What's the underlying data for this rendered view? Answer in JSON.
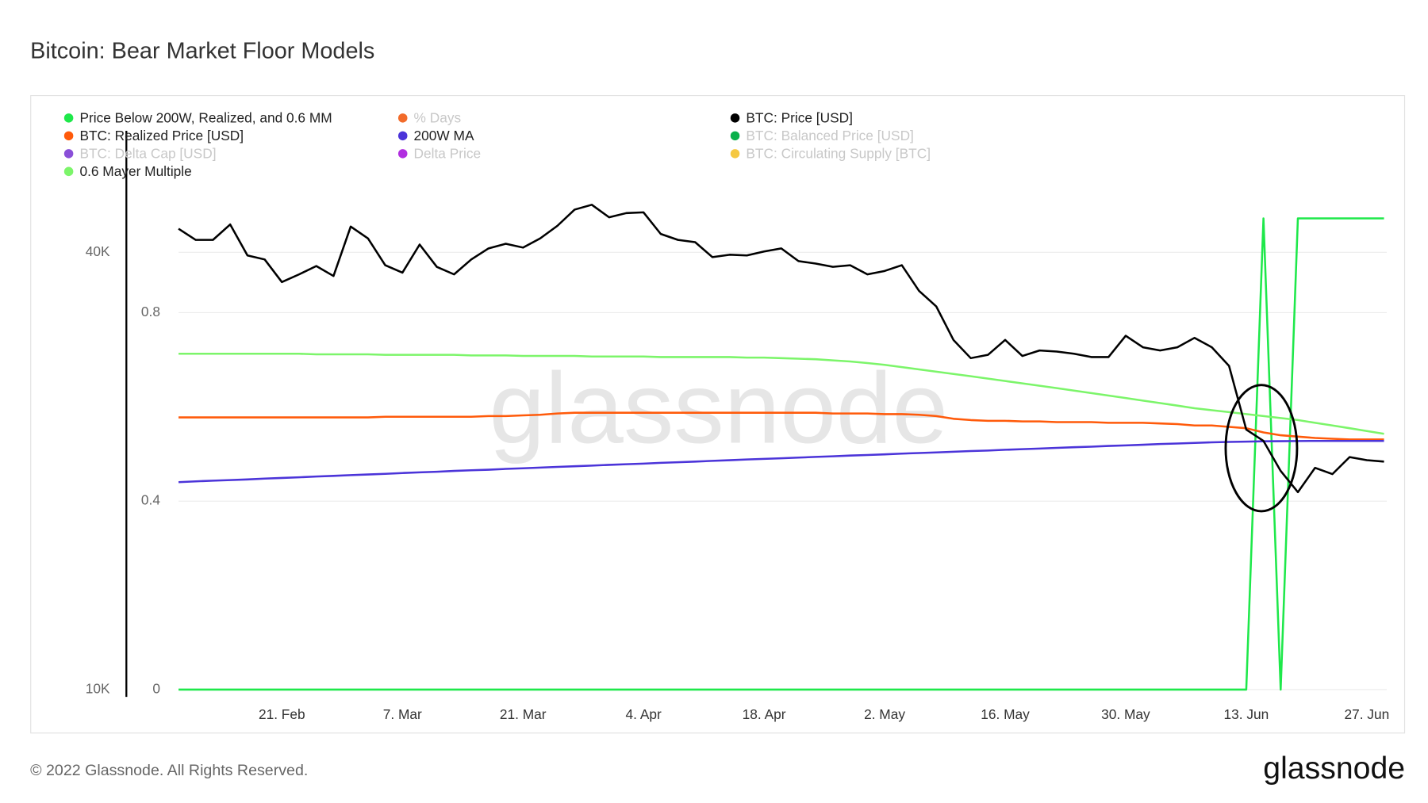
{
  "chart_data": {
    "type": "line",
    "title": "Bitcoin: Bear Market Floor Models",
    "watermark": "glassnode",
    "footer": "© 2022 Glassnode. All Rights Reserved.",
    "logo": "glassnode",
    "categories": [
      null,
      null,
      null,
      null,
      null,
      null,
      "21. Feb",
      null,
      null,
      null,
      null,
      null,
      null,
      "7. Mar",
      null,
      null,
      null,
      null,
      null,
      null,
      "21. Mar",
      null,
      null,
      null,
      null,
      null,
      null,
      "4. Apr",
      null,
      null,
      null,
      null,
      null,
      null,
      "18. Apr",
      null,
      null,
      null,
      null,
      null,
      null,
      "2. May",
      null,
      null,
      null,
      null,
      null,
      null,
      "16. May",
      null,
      null,
      null,
      null,
      null,
      null,
      "30. May",
      null,
      null,
      null,
      null,
      null,
      null,
      "13. Jun",
      null,
      null,
      null,
      null,
      null,
      null,
      "27. Jun",
      null
    ],
    "ylim": [
      10000,
      58800
    ],
    "log_scale": true,
    "yticks": [
      {
        "value": 10000,
        "label": "10K"
      },
      {
        "value": 40000,
        "label": "40K"
      }
    ],
    "y2lim": [
      0,
      1.186
    ],
    "y2ticks": [
      0,
      0.4,
      0.8
    ],
    "grid": true,
    "series": [
      {
        "name": "Price Below 200W, Realized, and 0.6 MM",
        "color": "#1ee84a",
        "axis": "y2",
        "visible": true,
        "values": [
          0,
          0,
          0,
          0,
          0,
          0,
          0,
          0,
          0,
          0,
          0,
          0,
          0,
          0,
          0,
          0,
          0,
          0,
          0,
          0,
          0,
          0,
          0,
          0,
          0,
          0,
          0,
          0,
          0,
          0,
          0,
          0,
          0,
          0,
          0,
          0,
          0,
          0,
          0,
          0,
          0,
          0,
          0,
          0,
          0,
          0,
          0,
          0,
          0,
          0,
          0,
          0,
          0,
          0,
          0,
          0,
          0,
          0,
          0,
          0,
          0,
          0,
          0,
          1,
          0,
          1,
          1,
          1,
          1,
          1,
          1
        ]
      },
      {
        "name": "% Days",
        "color": "#f26b2a",
        "visible": false
      },
      {
        "name": "BTC: Price [USD]",
        "color": "#000000",
        "visible": true,
        "values": [
          43100,
          41600,
          41600,
          43700,
          39600,
          39100,
          36400,
          37300,
          38300,
          37100,
          43400,
          41800,
          38400,
          37500,
          41000,
          38200,
          37300,
          39100,
          40500,
          41100,
          40600,
          41800,
          43500,
          45800,
          46500,
          44700,
          45300,
          45400,
          42400,
          41600,
          41300,
          39400,
          39700,
          39600,
          40100,
          40500,
          38900,
          38600,
          38200,
          38400,
          37300,
          37700,
          38400,
          35400,
          33700,
          30300,
          28600,
          28900,
          30300,
          28800,
          29300,
          29200,
          29000,
          28700,
          28700,
          30700,
          29600,
          29300,
          29600,
          30500,
          29600,
          27900,
          22800,
          22000,
          20000,
          18700,
          20200,
          19800,
          20900,
          20700,
          20600
        ]
      },
      {
        "name": "BTC: Realized Price [USD]",
        "color": "#ff5a0a",
        "visible": true,
        "values": [
          23700,
          23700,
          23700,
          23700,
          23700,
          23700,
          23700,
          23700,
          23700,
          23700,
          23700,
          23700,
          23750,
          23750,
          23750,
          23750,
          23750,
          23750,
          23800,
          23800,
          23850,
          23900,
          24000,
          24050,
          24050,
          24050,
          24050,
          24050,
          24050,
          24050,
          24050,
          24050,
          24050,
          24050,
          24050,
          24050,
          24050,
          24050,
          24000,
          24000,
          24000,
          23950,
          23950,
          23900,
          23800,
          23600,
          23500,
          23450,
          23450,
          23400,
          23400,
          23350,
          23350,
          23350,
          23300,
          23300,
          23300,
          23250,
          23200,
          23100,
          23100,
          23000,
          22900,
          22600,
          22400,
          22300,
          22200,
          22150,
          22100,
          22100,
          22100
        ]
      },
      {
        "name": "200W MA",
        "color": "#4b34d9",
        "visible": true,
        "values": [
          19300,
          19350,
          19390,
          19430,
          19470,
          19520,
          19560,
          19600,
          19650,
          19690,
          19740,
          19780,
          19820,
          19870,
          19910,
          19950,
          20000,
          20040,
          20080,
          20130,
          20170,
          20210,
          20260,
          20300,
          20340,
          20390,
          20430,
          20470,
          20520,
          20560,
          20600,
          20650,
          20690,
          20740,
          20780,
          20820,
          20870,
          20910,
          20950,
          21000,
          21040,
          21080,
          21130,
          21170,
          21210,
          21260,
          21300,
          21340,
          21390,
          21430,
          21470,
          21520,
          21560,
          21600,
          21650,
          21690,
          21730,
          21780,
          21820,
          21860,
          21900,
          21930,
          21950,
          21970,
          21980,
          21990,
          22000,
          22000,
          22000,
          22000,
          22000
        ]
      },
      {
        "name": "BTC: Balanced Price [USD]",
        "color": "#0ab04a",
        "visible": false
      },
      {
        "name": "BTC: Delta Cap [USD]",
        "color": "#8a4fd8",
        "visible": false
      },
      {
        "name": "Delta Price",
        "color": "#b12ee0",
        "visible": false
      },
      {
        "name": "BTC: Circulating Supply [BTC]",
        "color": "#f5c842",
        "visible": false
      },
      {
        "name": "0.6 Mayer Multiple",
        "color": "#7cf56a",
        "visible": true,
        "values": [
          29000,
          29000,
          29000,
          29000,
          29000,
          29000,
          29000,
          29000,
          28950,
          28950,
          28950,
          28950,
          28900,
          28900,
          28900,
          28900,
          28900,
          28850,
          28850,
          28850,
          28800,
          28800,
          28800,
          28800,
          28750,
          28750,
          28750,
          28750,
          28700,
          28700,
          28700,
          28700,
          28700,
          28650,
          28650,
          28600,
          28550,
          28500,
          28400,
          28300,
          28150,
          28000,
          27800,
          27600,
          27400,
          27200,
          27000,
          26800,
          26600,
          26400,
          26200,
          26000,
          25800,
          25600,
          25400,
          25200,
          25000,
          24800,
          24600,
          24400,
          24250,
          24100,
          23950,
          23800,
          23650,
          23500,
          23300,
          23100,
          22900,
          22700,
          22500
        ]
      }
    ]
  }
}
